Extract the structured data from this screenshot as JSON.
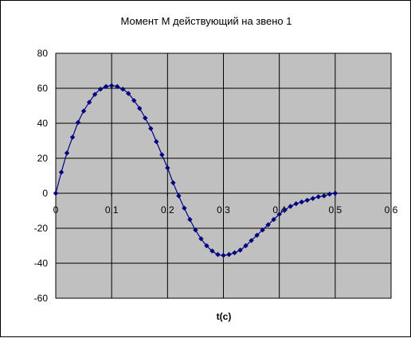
{
  "chart_data": {
    "type": "line",
    "title": "Момент M действующий на звено 1",
    "xlabel": "t(c)",
    "ylabel": "",
    "xlim": [
      0,
      0.6
    ],
    "ylim": [
      -60,
      80
    ],
    "x_ticks": [
      0,
      0.1,
      0.2,
      0.3,
      0.4,
      0.5,
      0.6
    ],
    "x_tick_labels": [
      "0",
      "0,1",
      "0,2",
      "0,3",
      "0,4",
      "0,5",
      "0,6"
    ],
    "y_ticks": [
      -60,
      -40,
      -20,
      0,
      20,
      40,
      60,
      80
    ],
    "y_tick_labels": [
      "-60",
      "-40",
      "-20",
      "0",
      "20",
      "40",
      "60",
      "80"
    ],
    "grid": true,
    "legend": "none",
    "colors": {
      "plot_background": "#c0c0c0",
      "series": "#000080",
      "grid": "#000000"
    },
    "series": [
      {
        "marker": "diamond",
        "x": [
          0,
          0.01,
          0.02,
          0.03,
          0.04,
          0.05,
          0.06,
          0.07,
          0.08,
          0.09,
          0.1,
          0.11,
          0.12,
          0.13,
          0.14,
          0.15,
          0.16,
          0.17,
          0.18,
          0.19,
          0.2,
          0.21,
          0.22,
          0.23,
          0.24,
          0.25,
          0.26,
          0.27,
          0.28,
          0.29,
          0.3,
          0.31,
          0.32,
          0.33,
          0.34,
          0.35,
          0.36,
          0.37,
          0.38,
          0.39,
          0.4,
          0.41,
          0.42,
          0.43,
          0.44,
          0.45,
          0.46,
          0.47,
          0.48,
          0.49,
          0.5
        ],
        "values": [
          0,
          12,
          23,
          32,
          40.5,
          47,
          52,
          56.5,
          59.5,
          61,
          61.5,
          61,
          59.5,
          57,
          53,
          48.5,
          43,
          37,
          29.5,
          22,
          14.5,
          6,
          -1.5,
          -8.5,
          -15,
          -21,
          -26,
          -30,
          -33,
          -35,
          -35.5,
          -35,
          -34,
          -32.5,
          -30,
          -27,
          -24,
          -21,
          -18,
          -15,
          -12,
          -9.5,
          -7.5,
          -6,
          -5,
          -4,
          -3,
          -2,
          -1.5,
          -0.5,
          0
        ]
      }
    ]
  }
}
